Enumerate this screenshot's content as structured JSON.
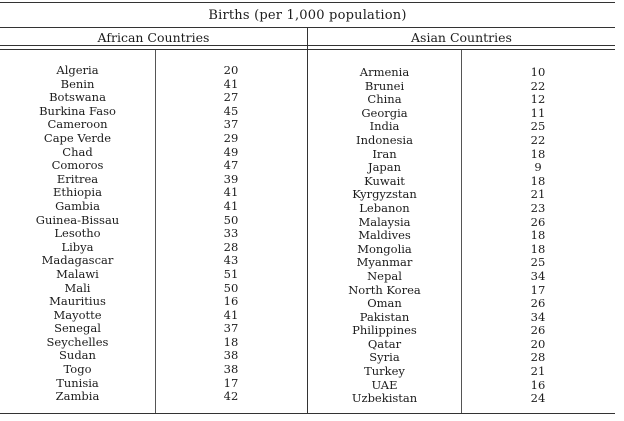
{
  "title": "Births (per 1,000 population)",
  "african": {
    "header": "African Countries",
    "rows": [
      {
        "country": "Algeria",
        "value": "20"
      },
      {
        "country": "Benin",
        "value": "41"
      },
      {
        "country": "Botswana",
        "value": "27"
      },
      {
        "country": "Burkina Faso",
        "value": "45"
      },
      {
        "country": "Cameroon",
        "value": "37"
      },
      {
        "country": "Cape Verde",
        "value": "29"
      },
      {
        "country": "Chad",
        "value": "49"
      },
      {
        "country": "Comoros",
        "value": "47"
      },
      {
        "country": "Eritrea",
        "value": "39"
      },
      {
        "country": "Ethiopia",
        "value": "41"
      },
      {
        "country": "Gambia",
        "value": "41"
      },
      {
        "country": "Guinea-Bissau",
        "value": "50"
      },
      {
        "country": "Lesotho",
        "value": "33"
      },
      {
        "country": "Libya",
        "value": "28"
      },
      {
        "country": "Madagascar",
        "value": "43"
      },
      {
        "country": "Malawi",
        "value": "51"
      },
      {
        "country": "Mali",
        "value": "50"
      },
      {
        "country": "Mauritius",
        "value": "16"
      },
      {
        "country": "Mayotte",
        "value": "41"
      },
      {
        "country": "Senegal",
        "value": "37"
      },
      {
        "country": "Seychelles",
        "value": "18"
      },
      {
        "country": "Sudan",
        "value": "38"
      },
      {
        "country": "Togo",
        "value": "38"
      },
      {
        "country": "Tunisia",
        "value": "17"
      },
      {
        "country": "Zambia",
        "value": "42"
      }
    ]
  },
  "asian": {
    "header": "Asian Countries",
    "rows": [
      {
        "country": "Armenia",
        "value": "10"
      },
      {
        "country": "Brunei",
        "value": "22"
      },
      {
        "country": "China",
        "value": "12"
      },
      {
        "country": "Georgia",
        "value": "11"
      },
      {
        "country": "India",
        "value": "25"
      },
      {
        "country": "Indonesia",
        "value": "22"
      },
      {
        "country": "Iran",
        "value": "18"
      },
      {
        "country": "Japan",
        "value": "9"
      },
      {
        "country": "Kuwait",
        "value": "18"
      },
      {
        "country": "Kyrgyzstan",
        "value": "21"
      },
      {
        "country": "Lebanon",
        "value": "23"
      },
      {
        "country": "Malaysia",
        "value": "26"
      },
      {
        "country": "Maldives",
        "value": "18"
      },
      {
        "country": "Mongolia",
        "value": "18"
      },
      {
        "country": "Myanmar",
        "value": "25"
      },
      {
        "country": "Nepal",
        "value": "34"
      },
      {
        "country": "North Korea",
        "value": "17"
      },
      {
        "country": "Oman",
        "value": "26"
      },
      {
        "country": "Pakistan",
        "value": "34"
      },
      {
        "country": "Philippines",
        "value": "26"
      },
      {
        "country": "Qatar",
        "value": "20"
      },
      {
        "country": "Syria",
        "value": "28"
      },
      {
        "country": "Turkey",
        "value": "21"
      },
      {
        "country": "UAE",
        "value": "16"
      },
      {
        "country": "Uzbekistan",
        "value": "24"
      }
    ]
  }
}
